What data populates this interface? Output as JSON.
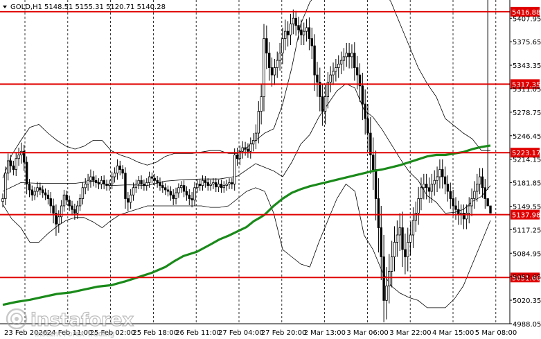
{
  "header": {
    "symbol": "GOLD,H1",
    "ohlc": "5148.51 5155.31 5120.71 5140.28"
  },
  "watermark": {
    "brand": "instaforex",
    "tagline": "Instant Forex Trading"
  },
  "colors": {
    "candle": "#000000",
    "ma": "#1a8a1a",
    "level_line": "#e00000",
    "level_label_bg": "#e00000",
    "grid": "#000000",
    "bollinger": "#000000"
  },
  "chart_data": {
    "type": "candlestick",
    "ylim": [
      4988.0,
      5433.0
    ],
    "grid": "dashed",
    "y_ticks": [
      "5407.95",
      "5375.65",
      "5343.35",
      "5311.05",
      "5278.75",
      "5246.45",
      "5214.15",
      "5181.85",
      "5149.55",
      "5117.25",
      "5084.95",
      "5052.65",
      "5020.35",
      "4988.05"
    ],
    "x_ticks": [
      "23 Feb 2026",
      "24 Feb 11:00",
      "25 Feb 02:00",
      "25 Feb 18:00",
      "26 Feb 11:00",
      "27 Feb 04:00",
      "27 Feb 20:00",
      "2 Mar 13:00",
      "3 Mar 06:00",
      "3 Mar 22:00",
      "4 Mar 15:00",
      "5 Mar 08:00"
    ],
    "levels": [
      {
        "value": 5416.88,
        "label": "5416.88"
      },
      {
        "value": 5317.35,
        "label": "5317.35"
      },
      {
        "value": 5223.17,
        "label": "5223.17"
      },
      {
        "value": 5137.98,
        "label": "5137.98"
      },
      {
        "value": 5051.6,
        "label": "5051.60"
      }
    ],
    "close": [
      5160,
      5195,
      5212,
      5205,
      5200,
      5215,
      5220,
      5225,
      5210,
      5180,
      5172,
      5165,
      5170,
      5175,
      5172,
      5168,
      5165,
      5160,
      5150,
      5140,
      5125,
      5135,
      5150,
      5165,
      5158,
      5150,
      5145,
      5140,
      5150,
      5160,
      5175,
      5180,
      5185,
      5190,
      5185,
      5182,
      5180,
      5185,
      5180,
      5178,
      5180,
      5190,
      5195,
      5205,
      5200,
      5195,
      5160,
      5155,
      5165,
      5175,
      5180,
      5185,
      5180,
      5178,
      5182,
      5190,
      5188,
      5185,
      5182,
      5178,
      5175,
      5172,
      5170,
      5165,
      5160,
      5168,
      5175,
      5178,
      5170,
      5165,
      5160,
      5158,
      5175,
      5180,
      5178,
      5185,
      5182,
      5178,
      5180,
      5182,
      5176,
      5180,
      5175,
      5178,
      5180,
      5182,
      5180,
      5220,
      5215,
      5225,
      5230,
      5228,
      5225,
      5235,
      5240,
      5250,
      5280,
      5300,
      5380,
      5360,
      5340,
      5330,
      5340,
      5350,
      5360,
      5380,
      5390,
      5385,
      5400,
      5408,
      5398,
      5392,
      5385,
      5390,
      5395,
      5380,
      5370,
      5330,
      5320,
      5300,
      5280,
      5300,
      5320,
      5330,
      5335,
      5340,
      5345,
      5350,
      5355,
      5360,
      5355,
      5360,
      5340,
      5330,
      5315,
      5290,
      5270,
      5250,
      5220,
      5200,
      5160,
      5120,
      5080,
      5020,
      5040,
      5060,
      5080,
      5100,
      5110,
      5120,
      5090,
      5080,
      5100,
      5110,
      5130,
      5140,
      5160,
      5175,
      5180,
      5175,
      5170,
      5180,
      5185,
      5190,
      5200,
      5190,
      5180,
      5170,
      5160,
      5150,
      5145,
      5138,
      5140,
      5132,
      5140,
      5150,
      5160,
      5170,
      5180,
      5190,
      5175,
      5160,
      5150,
      5140
    ],
    "range_up": [
      7,
      9,
      10,
      8,
      7,
      9,
      10,
      12,
      9,
      8,
      7,
      6,
      6,
      8,
      7,
      6,
      6,
      7,
      9,
      10,
      12,
      9,
      8,
      7,
      6,
      6,
      7,
      8,
      7,
      6,
      7,
      8,
      9,
      10,
      8,
      7,
      6,
      6,
      7,
      6,
      6,
      7,
      8,
      9,
      7,
      6,
      8,
      9,
      8,
      7,
      6,
      6,
      7,
      6,
      6,
      7,
      6,
      6,
      6,
      7,
      6,
      6,
      6,
      7,
      8,
      7,
      6,
      6,
      7,
      7,
      8,
      9,
      8,
      6,
      6,
      7,
      6,
      6,
      6,
      6,
      6,
      6,
      6,
      6,
      6,
      6,
      6,
      9,
      10,
      8,
      9,
      8,
      8,
      9,
      10,
      12,
      14,
      18,
      20,
      18,
      15,
      14,
      12,
      12,
      14,
      15,
      16,
      14,
      14,
      12,
      10,
      12,
      14,
      12,
      12,
      14,
      15,
      16,
      18,
      20,
      18,
      16,
      14,
      12,
      12,
      12,
      12,
      12,
      12,
      14,
      14,
      12,
      15,
      16,
      16,
      18,
      20,
      20,
      22,
      24,
      26,
      28,
      30,
      30,
      26,
      24,
      22,
      22,
      20,
      20,
      22,
      22,
      20,
      18,
      18,
      16,
      16,
      14,
      14,
      14,
      14,
      14,
      14,
      14,
      14,
      14,
      14,
      12,
      12,
      12,
      12,
      12,
      12,
      12,
      12,
      12,
      14,
      14,
      14,
      12,
      12,
      12,
      12
    ],
    "range_down": [
      8,
      9,
      10,
      9,
      8,
      9,
      10,
      12,
      12,
      14,
      10,
      8,
      7,
      8,
      7,
      7,
      7,
      8,
      10,
      14,
      16,
      12,
      9,
      8,
      7,
      7,
      8,
      9,
      8,
      7,
      8,
      9,
      9,
      10,
      8,
      7,
      7,
      7,
      7,
      7,
      7,
      7,
      8,
      9,
      8,
      8,
      14,
      12,
      9,
      8,
      7,
      7,
      7,
      7,
      7,
      7,
      7,
      7,
      7,
      7,
      7,
      7,
      7,
      8,
      9,
      8,
      7,
      7,
      8,
      8,
      9,
      10,
      8,
      7,
      7,
      7,
      7,
      7,
      7,
      7,
      7,
      7,
      7,
      7,
      7,
      7,
      7,
      9,
      10,
      9,
      10,
      9,
      9,
      10,
      10,
      12,
      14,
      18,
      20,
      22,
      18,
      16,
      14,
      14,
      14,
      15,
      16,
      16,
      14,
      14,
      14,
      14,
      14,
      14,
      14,
      16,
      18,
      22,
      20,
      20,
      20,
      18,
      16,
      14,
      14,
      14,
      14,
      14,
      14,
      14,
      16,
      16,
      18,
      20,
      22,
      22,
      22,
      24,
      26,
      28,
      30,
      34,
      32,
      30,
      26,
      24,
      22,
      20,
      20,
      22,
      24,
      24,
      20,
      18,
      18,
      16,
      16,
      16,
      16,
      16,
      16,
      16,
      16,
      16,
      16,
      16,
      14,
      14,
      14,
      14,
      14,
      14,
      14,
      14,
      14,
      14,
      14,
      14,
      14,
      14,
      14,
      14
    ],
    "ma_path": [
      [
        0,
        5014
      ],
      [
        15,
        5018
      ],
      [
        30,
        5021
      ],
      [
        45,
        5025
      ],
      [
        60,
        5029
      ],
      [
        75,
        5031
      ],
      [
        90,
        5035
      ],
      [
        105,
        5039
      ],
      [
        120,
        5041
      ],
      [
        135,
        5046
      ],
      [
        150,
        5052
      ],
      [
        165,
        5058
      ],
      [
        180,
        5066
      ],
      [
        190,
        5074
      ],
      [
        200,
        5081
      ],
      [
        215,
        5087
      ],
      [
        230,
        5097
      ],
      [
        240,
        5104
      ],
      [
        250,
        5109
      ],
      [
        260,
        5115
      ],
      [
        270,
        5121
      ],
      [
        278,
        5129
      ],
      [
        285,
        5134
      ],
      [
        290,
        5138
      ],
      [
        300,
        5150
      ],
      [
        310,
        5160
      ],
      [
        320,
        5168
      ],
      [
        330,
        5173
      ],
      [
        340,
        5177
      ],
      [
        350,
        5180
      ],
      [
        360,
        5183
      ],
      [
        370,
        5186
      ],
      [
        380,
        5189
      ],
      [
        390,
        5192
      ],
      [
        400,
        5195
      ],
      [
        410,
        5198
      ],
      [
        420,
        5200
      ],
      [
        430,
        5203
      ],
      [
        440,
        5206
      ],
      [
        450,
        5210
      ],
      [
        460,
        5214
      ],
      [
        470,
        5218
      ],
      [
        480,
        5220
      ],
      [
        490,
        5220
      ],
      [
        500,
        5222
      ],
      [
        510,
        5224
      ],
      [
        520,
        5228
      ],
      [
        530,
        5231
      ],
      [
        540,
        5233
      ]
    ],
    "bb_upper": [
      [
        0,
        5188
      ],
      [
        10,
        5220
      ],
      [
        20,
        5240
      ],
      [
        30,
        5258
      ],
      [
        40,
        5262
      ],
      [
        50,
        5250
      ],
      [
        60,
        5240
      ],
      [
        70,
        5232
      ],
      [
        80,
        5228
      ],
      [
        90,
        5232
      ],
      [
        100,
        5240
      ],
      [
        110,
        5240
      ],
      [
        120,
        5226
      ],
      [
        130,
        5220
      ],
      [
        140,
        5216
      ],
      [
        150,
        5210
      ],
      [
        160,
        5206
      ],
      [
        170,
        5210
      ],
      [
        180,
        5218
      ],
      [
        190,
        5222
      ],
      [
        200,
        5222
      ],
      [
        210,
        5222
      ],
      [
        220,
        5224
      ],
      [
        230,
        5226
      ],
      [
        240,
        5226
      ],
      [
        250,
        5222
      ],
      [
        260,
        5222
      ],
      [
        270,
        5230
      ],
      [
        280,
        5240
      ],
      [
        290,
        5250
      ],
      [
        300,
        5256
      ],
      [
        310,
        5290
      ],
      [
        320,
        5340
      ],
      [
        330,
        5400
      ],
      [
        340,
        5430
      ],
      [
        350,
        5445
      ],
      [
        360,
        5450
      ],
      [
        370,
        5455
      ],
      [
        380,
        5455
      ],
      [
        390,
        5455
      ],
      [
        400,
        5455
      ],
      [
        410,
        5455
      ],
      [
        420,
        5450
      ],
      [
        430,
        5430
      ],
      [
        440,
        5400
      ],
      [
        450,
        5370
      ],
      [
        460,
        5340
      ],
      [
        470,
        5318
      ],
      [
        480,
        5300
      ],
      [
        490,
        5270
      ],
      [
        500,
        5260
      ],
      [
        510,
        5250
      ],
      [
        520,
        5242
      ],
      [
        530,
        5226
      ],
      [
        540,
        5226
      ]
    ],
    "bb_lower": [
      [
        0,
        5152
      ],
      [
        10,
        5132
      ],
      [
        20,
        5120
      ],
      [
        30,
        5100
      ],
      [
        40,
        5100
      ],
      [
        50,
        5112
      ],
      [
        60,
        5122
      ],
      [
        70,
        5130
      ],
      [
        80,
        5134
      ],
      [
        90,
        5134
      ],
      [
        100,
        5128
      ],
      [
        110,
        5120
      ],
      [
        120,
        5130
      ],
      [
        130,
        5138
      ],
      [
        140,
        5142
      ],
      [
        150,
        5146
      ],
      [
        160,
        5150
      ],
      [
        170,
        5150
      ],
      [
        180,
        5150
      ],
      [
        190,
        5150
      ],
      [
        200,
        5150
      ],
      [
        210,
        5150
      ],
      [
        220,
        5150
      ],
      [
        230,
        5148
      ],
      [
        240,
        5148
      ],
      [
        250,
        5150
      ],
      [
        260,
        5160
      ],
      [
        270,
        5170
      ],
      [
        280,
        5175
      ],
      [
        290,
        5170
      ],
      [
        300,
        5140
      ],
      [
        310,
        5090
      ],
      [
        320,
        5080
      ],
      [
        330,
        5070
      ],
      [
        340,
        5066
      ],
      [
        350,
        5100
      ],
      [
        360,
        5130
      ],
      [
        370,
        5160
      ],
      [
        380,
        5180
      ],
      [
        390,
        5170
      ],
      [
        400,
        5110
      ],
      [
        410,
        5090
      ],
      [
        420,
        5060
      ],
      [
        430,
        5040
      ],
      [
        440,
        5030
      ],
      [
        450,
        5024
      ],
      [
        460,
        5020
      ],
      [
        470,
        5010
      ],
      [
        480,
        5010
      ],
      [
        490,
        5010
      ],
      [
        500,
        5022
      ],
      [
        510,
        5040
      ],
      [
        520,
        5070
      ],
      [
        530,
        5100
      ],
      [
        540,
        5130
      ]
    ],
    "bb_middle": [
      [
        0,
        5170
      ],
      [
        20,
        5182
      ],
      [
        40,
        5181
      ],
      [
        60,
        5181
      ],
      [
        80,
        5181
      ],
      [
        100,
        5184
      ],
      [
        120,
        5178
      ],
      [
        140,
        5179
      ],
      [
        160,
        5178
      ],
      [
        180,
        5184
      ],
      [
        200,
        5186
      ],
      [
        220,
        5187
      ],
      [
        240,
        5187
      ],
      [
        260,
        5191
      ],
      [
        280,
        5208
      ],
      [
        300,
        5198
      ],
      [
        310,
        5190
      ],
      [
        320,
        5210
      ],
      [
        330,
        5235
      ],
      [
        340,
        5248
      ],
      [
        350,
        5272
      ],
      [
        360,
        5290
      ],
      [
        370,
        5308
      ],
      [
        380,
        5318
      ],
      [
        390,
        5312
      ],
      [
        400,
        5282
      ],
      [
        410,
        5272
      ],
      [
        420,
        5255
      ],
      [
        430,
        5235
      ],
      [
        440,
        5215
      ],
      [
        450,
        5197
      ],
      [
        460,
        5185
      ],
      [
        470,
        5164
      ],
      [
        480,
        5155
      ],
      [
        490,
        5140
      ],
      [
        500,
        5141
      ],
      [
        510,
        5145
      ],
      [
        520,
        5156
      ],
      [
        530,
        5163
      ],
      [
        540,
        5178
      ]
    ]
  }
}
